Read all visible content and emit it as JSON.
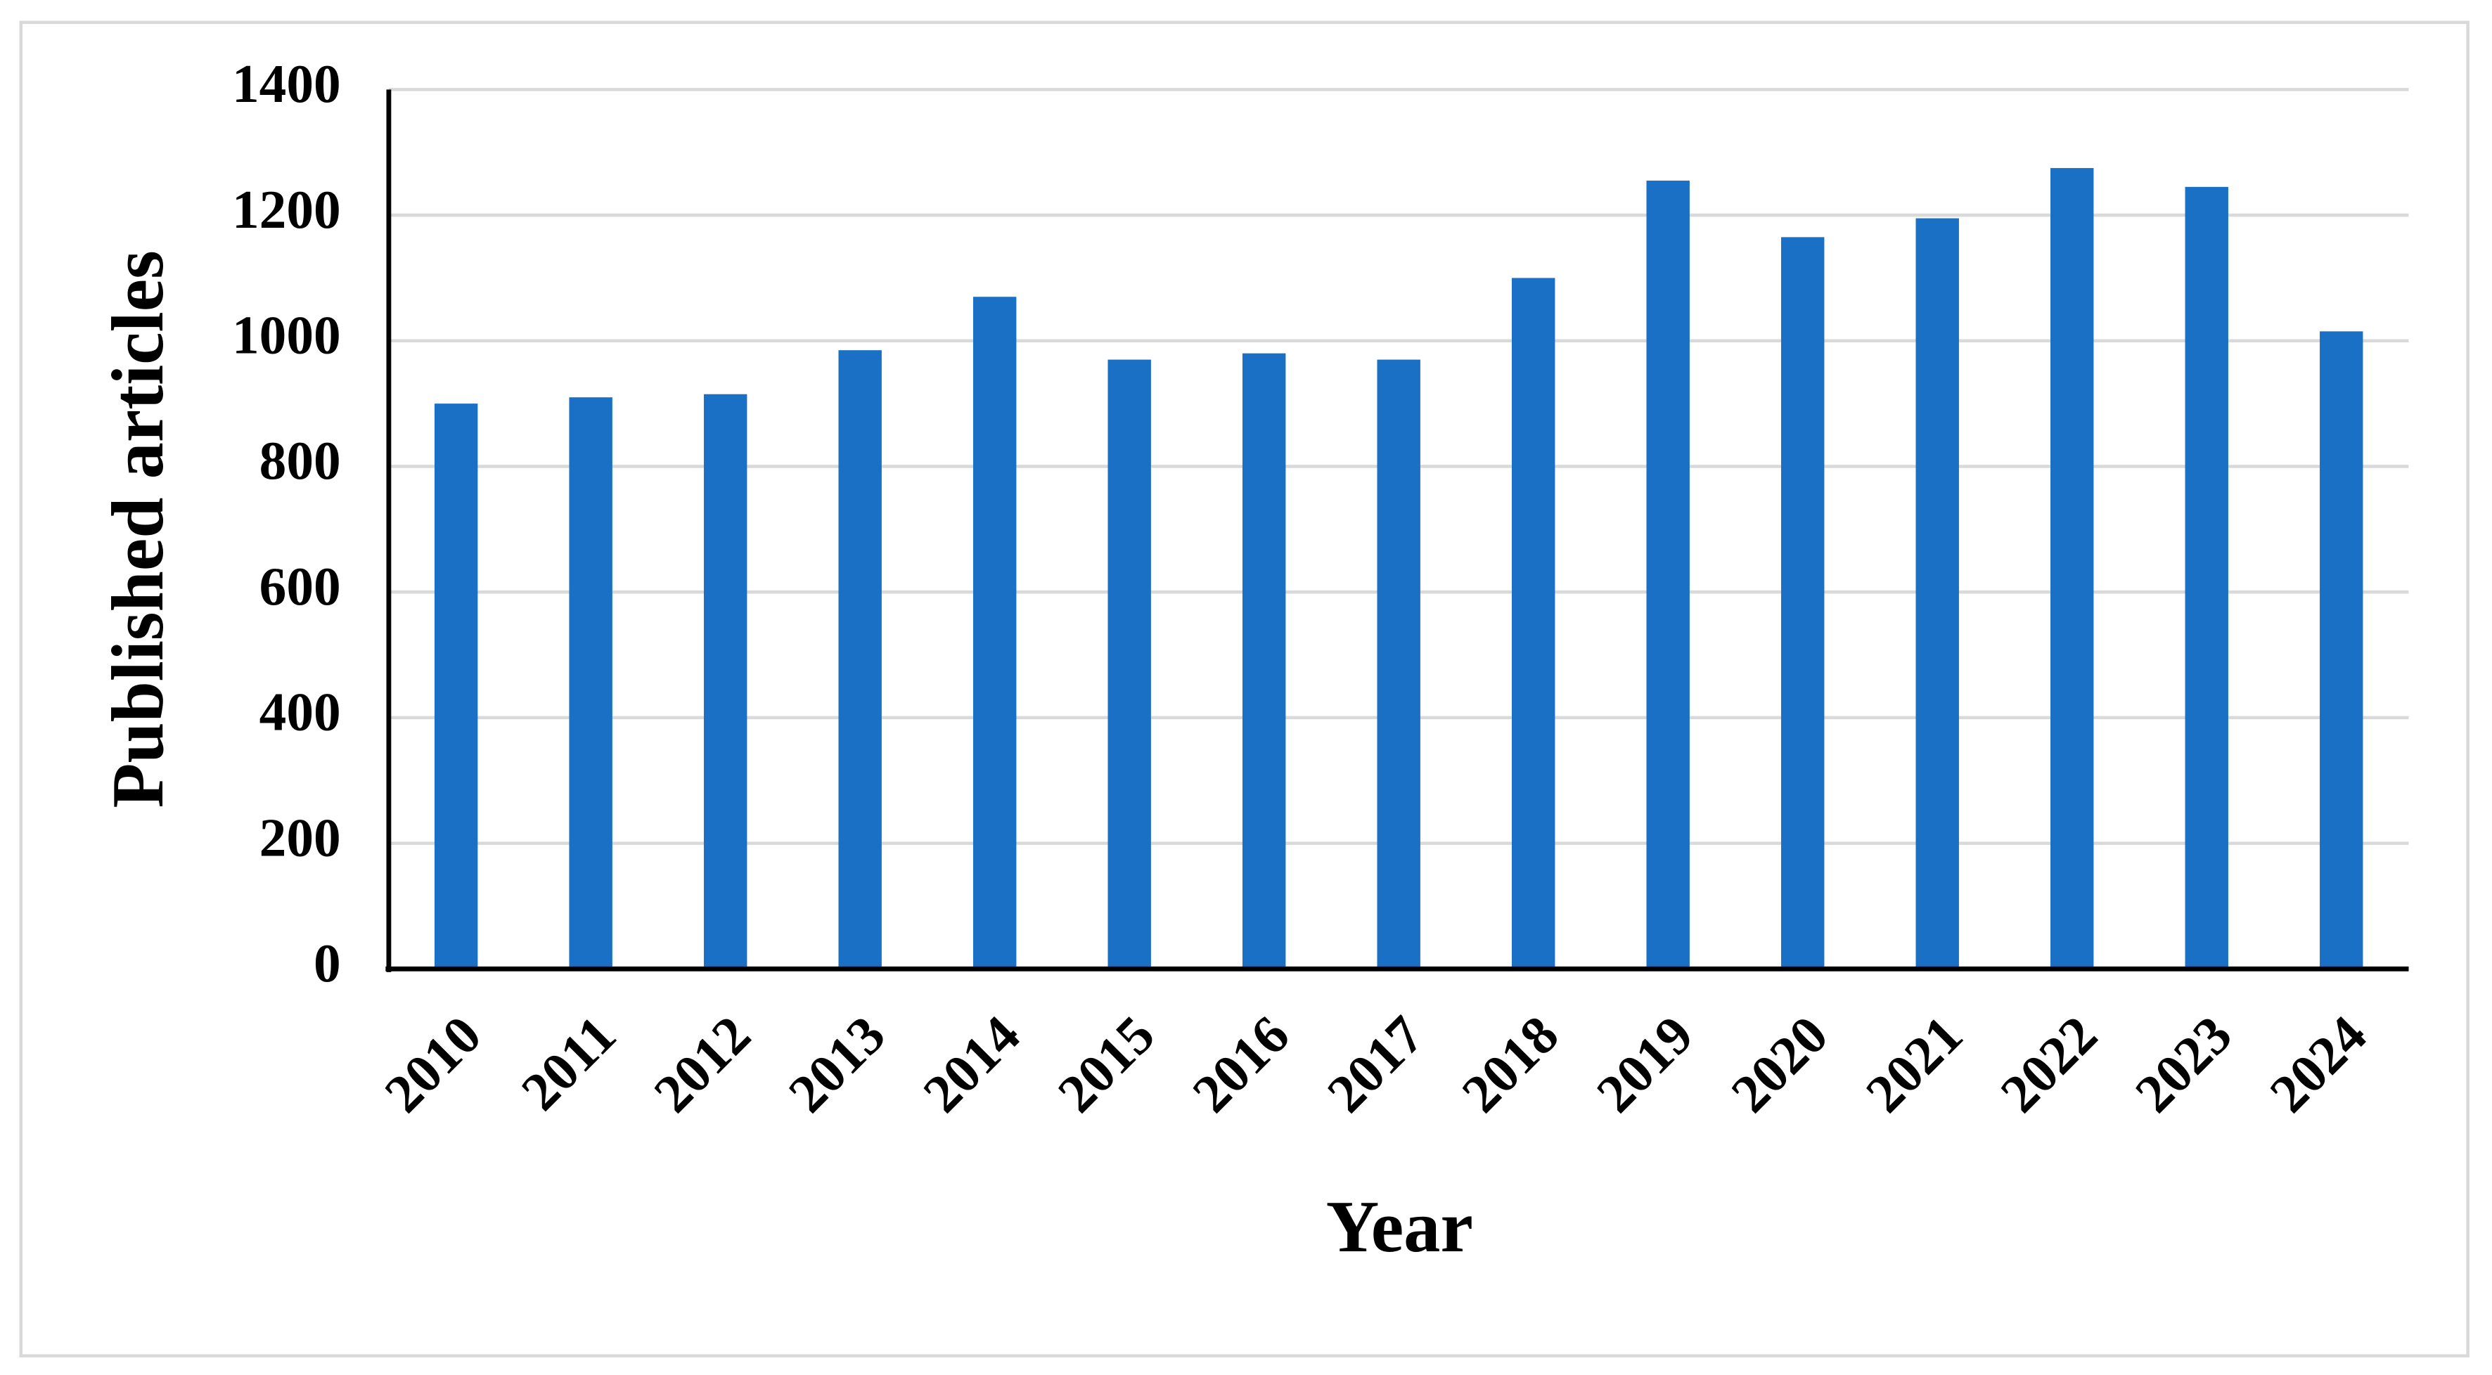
{
  "chart_data": {
    "type": "bar",
    "x_label": "Year",
    "y_label": "Published articles",
    "categories": [
      "2010",
      "2011",
      "2012",
      "2013",
      "2014",
      "2015",
      "2016",
      "2017",
      "2018",
      "2019",
      "2020",
      "2021",
      "2022",
      "2023",
      "2024"
    ],
    "values": [
      900,
      910,
      915,
      985,
      1070,
      970,
      980,
      970,
      1100,
      1255,
      1165,
      1195,
      1275,
      1245,
      1015
    ],
    "color": "#1a70c4",
    "ylim": [
      0,
      1400
    ],
    "yticks": [
      0,
      200,
      400,
      600,
      800,
      1000,
      1200,
      1400
    ],
    "grid": true
  }
}
